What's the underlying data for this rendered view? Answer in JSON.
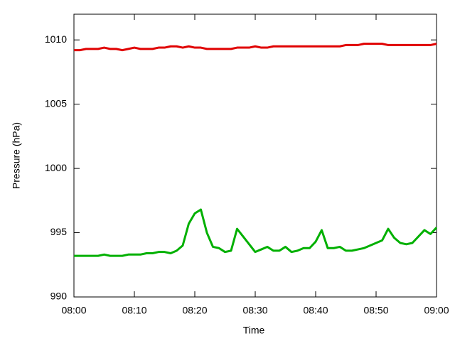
{
  "chart_data": {
    "type": "line",
    "x_label": "Time",
    "y_label": "Pressure (hPa)",
    "x": [
      0,
      1,
      2,
      3,
      4,
      5,
      6,
      7,
      8,
      9,
      10,
      11,
      12,
      13,
      14,
      15,
      16,
      17,
      18,
      19,
      20,
      21,
      22,
      23,
      24,
      25,
      26,
      27,
      28,
      29,
      30,
      31,
      32,
      33,
      34,
      35,
      36,
      37,
      38,
      39,
      40,
      41,
      42,
      43,
      44,
      45,
      46,
      47,
      48,
      49,
      50,
      51,
      52,
      53,
      54,
      55,
      56,
      57,
      58,
      59,
      60
    ],
    "series": [
      {
        "color": "#e00000",
        "values": [
          1009.2,
          1009.2,
          1009.3,
          1009.3,
          1009.3,
          1009.4,
          1009.3,
          1009.3,
          1009.2,
          1009.3,
          1009.4,
          1009.3,
          1009.3,
          1009.3,
          1009.4,
          1009.4,
          1009.5,
          1009.5,
          1009.4,
          1009.5,
          1009.4,
          1009.4,
          1009.3,
          1009.3,
          1009.3,
          1009.3,
          1009.3,
          1009.4,
          1009.4,
          1009.4,
          1009.5,
          1009.4,
          1009.4,
          1009.5,
          1009.5,
          1009.5,
          1009.5,
          1009.5,
          1009.5,
          1009.5,
          1009.5,
          1009.5,
          1009.5,
          1009.5,
          1009.5,
          1009.6,
          1009.6,
          1009.6,
          1009.7,
          1009.7,
          1009.7,
          1009.7,
          1009.6,
          1009.6,
          1009.6,
          1009.6,
          1009.6,
          1009.6,
          1009.6,
          1009.6,
          1009.7
        ]
      },
      {
        "color": "#00b000",
        "values": [
          993.2,
          993.2,
          993.2,
          993.2,
          993.2,
          993.3,
          993.2,
          993.2,
          993.2,
          993.3,
          993.3,
          993.3,
          993.4,
          993.4,
          993.5,
          993.5,
          993.4,
          993.6,
          994.0,
          995.7,
          996.5,
          996.8,
          995.0,
          993.9,
          993.8,
          993.5,
          993.6,
          995.3,
          994.7,
          994.1,
          993.5,
          993.7,
          993.9,
          993.6,
          993.6,
          993.9,
          993.5,
          993.6,
          993.8,
          993.8,
          994.3,
          995.2,
          993.8,
          993.8,
          993.9,
          993.6,
          993.6,
          993.7,
          993.8,
          994.0,
          994.2,
          994.4,
          995.3,
          994.6,
          994.2,
          994.1,
          994.2,
          994.7,
          995.2,
          994.9,
          995.4
        ]
      }
    ],
    "xlim": [
      0,
      60
    ],
    "xticks": [
      {
        "value": 0,
        "label": "08:00"
      },
      {
        "value": 10,
        "label": "08:10"
      },
      {
        "value": 20,
        "label": "08:20"
      },
      {
        "value": 30,
        "label": "08:30"
      },
      {
        "value": 40,
        "label": "08:40"
      },
      {
        "value": 50,
        "label": "08:50"
      },
      {
        "value": 60,
        "label": "09:00"
      }
    ],
    "ylim": [
      990,
      1012
    ],
    "yticks": [
      990,
      995,
      1000,
      1005,
      1010
    ],
    "grid": false
  }
}
